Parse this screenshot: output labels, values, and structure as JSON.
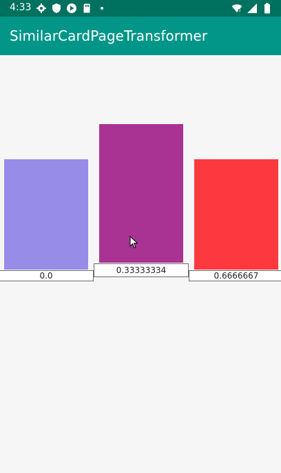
{
  "status_bar": {
    "time": "4:33",
    "left_icons": [
      "gear-icon",
      "shield-icon",
      "play-icon",
      "sd-card-icon",
      "dot-icon"
    ],
    "right_icons": [
      "wifi-icon",
      "signal-icon",
      "battery-icon"
    ]
  },
  "app_bar": {
    "title": "SimilarCardPageTransformer"
  },
  "cards": [
    {
      "label": "0.0",
      "color": "#978ce7"
    },
    {
      "label": "0.33333334",
      "color": "#a93393"
    },
    {
      "label": "0.6666667",
      "color": "#fd383f"
    }
  ],
  "colors": {
    "status_bar": "#00705f",
    "app_bar": "#019688",
    "background": "#f6f6f6"
  }
}
